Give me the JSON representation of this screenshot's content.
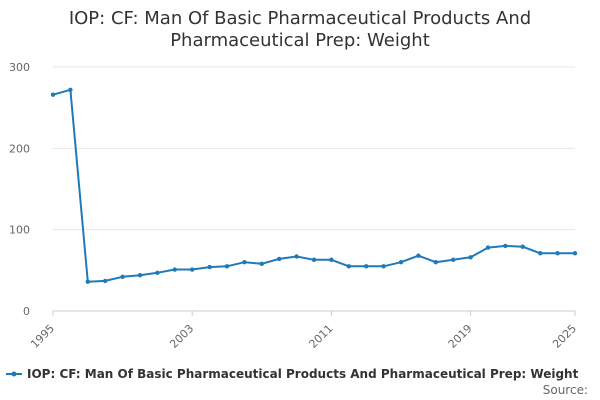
{
  "chart_data": {
    "type": "line",
    "title_lines": [
      "IOP: CF: Man Of Basic Pharmaceutical Products And",
      "Pharmaceutical Prep: Weight"
    ],
    "xlabel": "",
    "ylabel": "",
    "x_ticks": [
      "1995",
      "2003",
      "2011",
      "2019",
      "2025"
    ],
    "y_ticks": [
      "0",
      "100",
      "200",
      "300"
    ],
    "ylim": [
      0,
      300
    ],
    "xlim": [
      1995,
      2025
    ],
    "grid": true,
    "legend_position": "bottom",
    "series": [
      {
        "name": "IOP: CF: Man Of Basic Pharmaceutical Products And Pharmaceutical Prep: Weight",
        "color": "#1f7ab8",
        "x": [
          1995,
          1996,
          1997,
          1998,
          1999,
          2000,
          2001,
          2002,
          2003,
          2004,
          2005,
          2006,
          2007,
          2008,
          2009,
          2010,
          2011,
          2012,
          2013,
          2014,
          2015,
          2016,
          2017,
          2018,
          2019,
          2020,
          2021,
          2022,
          2023,
          2024,
          2025
        ],
        "values": [
          266,
          272,
          36,
          37,
          42,
          44,
          47,
          51,
          51,
          54,
          55,
          60,
          58,
          64,
          67,
          63,
          63,
          55,
          55,
          55,
          60,
          68,
          60,
          63,
          66,
          78,
          80,
          79,
          71,
          71,
          71
        ]
      }
    ],
    "source_label": "Source:"
  }
}
